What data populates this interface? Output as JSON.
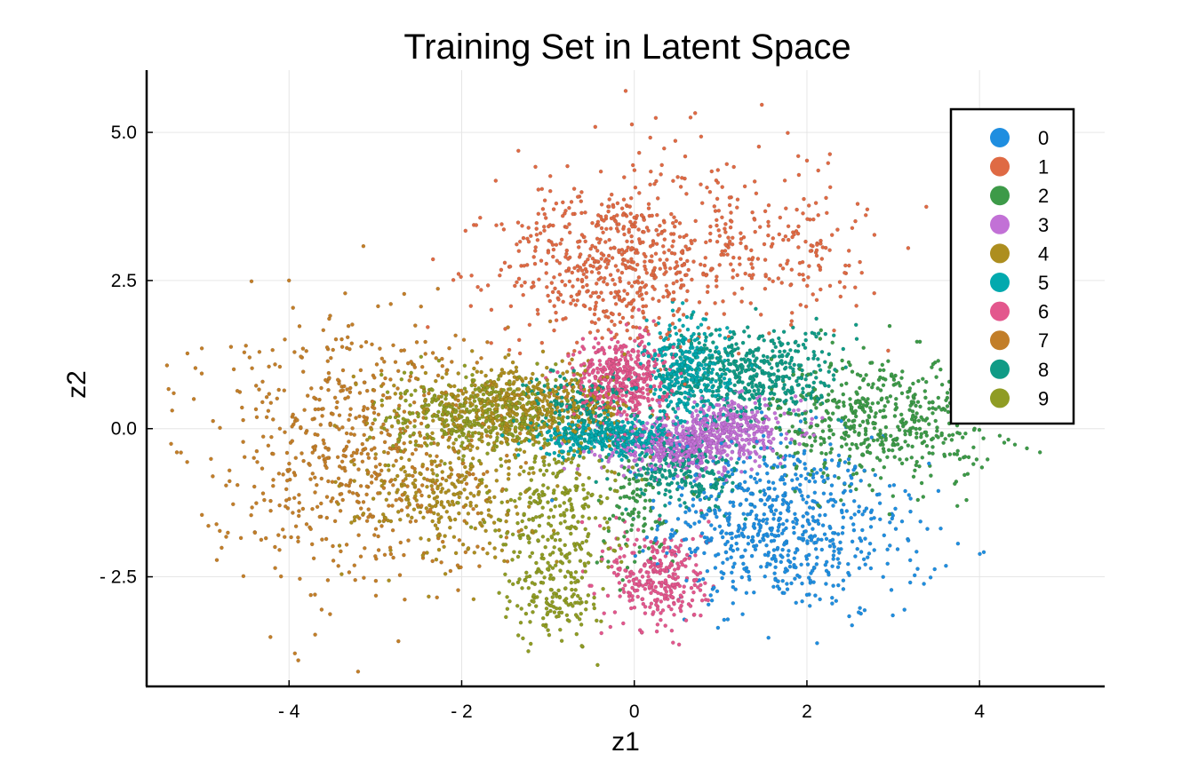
{
  "chart_data": {
    "type": "scatter",
    "title": "Training Set in Latent Space",
    "xlabel": "z1",
    "ylabel": "z2",
    "xlim": [
      -5.65,
      5.45
    ],
    "ylim": [
      -4.35,
      6.05
    ],
    "xticks": [
      -4,
      -2,
      0,
      2,
      4
    ],
    "xtick_labels": [
      "- 4",
      "- 2",
      "0",
      "2",
      "4"
    ],
    "yticks": [
      -2.5,
      0.0,
      2.5,
      5.0
    ],
    "ytick_labels": [
      "- 2.5",
      "0.0",
      "2.5",
      "5.0"
    ],
    "grid": true,
    "legend_position": "top-right",
    "series": [
      {
        "name": "0",
        "color": "#1f8ee0",
        "n": 680,
        "clusters": [
          {
            "cx": 1.55,
            "cy": -1.55,
            "sx": 0.62,
            "sy": 0.72,
            "w": 0.8
          },
          {
            "cx": 2.4,
            "cy": -2.0,
            "sx": 0.55,
            "sy": 0.6,
            "w": 0.2
          }
        ],
        "samples": [
          [
            1.2,
            -1.0
          ],
          [
            1.5,
            -1.8
          ],
          [
            2.0,
            -2.2
          ],
          [
            0.9,
            -2.9
          ],
          [
            2.6,
            -3.1
          ],
          [
            3.2,
            -1.4
          ]
        ]
      },
      {
        "name": "1",
        "color": "#df6a44",
        "n": 820,
        "clusters": [
          {
            "cx": -0.3,
            "cy": 2.7,
            "sx": 0.65,
            "sy": 0.65,
            "w": 0.55
          },
          {
            "cx": 0.5,
            "cy": 3.4,
            "sx": 0.9,
            "sy": 0.8,
            "w": 0.3
          },
          {
            "cx": 1.8,
            "cy": 2.9,
            "sx": 0.55,
            "sy": 0.55,
            "w": 0.15
          }
        ],
        "samples": [
          [
            -1.5,
            2.8
          ],
          [
            -0.2,
            3.6
          ],
          [
            0.8,
            2.6
          ],
          [
            -0.1,
            5.7
          ],
          [
            1.9,
            4.6
          ],
          [
            2.7,
            3.7
          ]
        ]
      },
      {
        "name": "2",
        "color": "#3d9a48",
        "n": 620,
        "clusters": [
          {
            "cx": 2.9,
            "cy": 0.15,
            "sx": 0.65,
            "sy": 0.55,
            "w": 0.85
          },
          {
            "cx": 0.0,
            "cy": -1.4,
            "sx": 0.25,
            "sy": 0.5,
            "w": 0.15
          }
        ],
        "samples": [
          [
            2.5,
            0.5
          ],
          [
            3.2,
            0.0
          ],
          [
            3.8,
            1.6
          ],
          [
            4.7,
            -0.4
          ],
          [
            2.2,
            -0.6
          ]
        ]
      },
      {
        "name": "3",
        "color": "#c271d6",
        "n": 720,
        "clusters": [
          {
            "cx": 0.55,
            "cy": -0.3,
            "sx": 0.45,
            "sy": 0.22,
            "w": 0.6
          },
          {
            "cx": 1.1,
            "cy": 0.05,
            "sx": 0.4,
            "sy": 0.22,
            "w": 0.4
          }
        ],
        "samples": [
          [
            0.2,
            -0.4
          ],
          [
            0.8,
            -0.2
          ],
          [
            1.3,
            0.1
          ],
          [
            0.5,
            -0.8
          ]
        ]
      },
      {
        "name": "4",
        "color": "#ad8e1f",
        "n": 780,
        "clusters": [
          {
            "cx": -1.3,
            "cy": 0.35,
            "sx": 0.65,
            "sy": 0.32,
            "w": 0.65
          },
          {
            "cx": -2.2,
            "cy": -1.1,
            "sx": 0.5,
            "sy": 0.55,
            "w": 0.35
          }
        ],
        "samples": [
          [
            -1.6,
            0.4
          ],
          [
            -0.9,
            0.5
          ],
          [
            -2.3,
            -1.3
          ],
          [
            -2.0,
            -0.9
          ]
        ]
      },
      {
        "name": "5",
        "color": "#02a9ae",
        "n": 700,
        "clusters": [
          {
            "cx": 0.6,
            "cy": 0.9,
            "sx": 0.25,
            "sy": 0.45,
            "w": 0.5
          },
          {
            "cx": -0.3,
            "cy": -0.15,
            "sx": 0.4,
            "sy": 0.15,
            "w": 0.5
          }
        ],
        "samples": [
          [
            0.6,
            1.3
          ],
          [
            0.4,
            0.4
          ],
          [
            -0.4,
            -0.1
          ],
          [
            0.1,
            0.1
          ]
        ]
      },
      {
        "name": "6",
        "color": "#e3578d",
        "n": 720,
        "clusters": [
          {
            "cx": -0.15,
            "cy": 0.85,
            "sx": 0.28,
            "sy": 0.35,
            "w": 0.6
          },
          {
            "cx": 0.3,
            "cy": -2.55,
            "sx": 0.28,
            "sy": 0.45,
            "w": 0.4
          }
        ],
        "samples": [
          [
            -0.2,
            0.9
          ],
          [
            0.1,
            0.6
          ],
          [
            0.3,
            -2.4
          ],
          [
            0.4,
            -3.0
          ]
        ]
      },
      {
        "name": "7",
        "color": "#c27e29",
        "n": 620,
        "clusters": [
          {
            "cx": -3.3,
            "cy": -0.3,
            "sx": 0.85,
            "sy": 1.15,
            "w": 1.0
          }
        ],
        "samples": [
          [
            -4.0,
            2.5
          ],
          [
            -4.5,
            1.4
          ],
          [
            -3.0,
            -0.5
          ],
          [
            -3.7,
            -2.8
          ],
          [
            -3.2,
            -4.1
          ],
          [
            -5.3,
            -0.4
          ]
        ]
      },
      {
        "name": "8",
        "color": "#109b86",
        "n": 820,
        "clusters": [
          {
            "cx": 1.4,
            "cy": 0.9,
            "sx": 0.5,
            "sy": 0.4,
            "w": 0.55
          },
          {
            "cx": 0.6,
            "cy": -0.8,
            "sx": 0.35,
            "sy": 0.3,
            "w": 0.25
          },
          {
            "cx": -0.6,
            "cy": 0.4,
            "sx": 0.3,
            "sy": 0.3,
            "w": 0.2
          }
        ],
        "samples": [
          [
            1.0,
            0.8
          ],
          [
            1.8,
            1.1
          ],
          [
            0.8,
            -0.8
          ],
          [
            -0.5,
            0.5
          ]
        ]
      },
      {
        "name": "9",
        "color": "#8f9c24",
        "n": 820,
        "clusters": [
          {
            "cx": -1.8,
            "cy": 0.2,
            "sx": 0.55,
            "sy": 0.32,
            "w": 0.5
          },
          {
            "cx": -0.9,
            "cy": -1.3,
            "sx": 0.35,
            "sy": 0.75,
            "w": 0.35
          },
          {
            "cx": -0.9,
            "cy": -2.9,
            "sx": 0.25,
            "sy": 0.35,
            "w": 0.15
          }
        ],
        "samples": [
          [
            -2.0,
            0.2
          ],
          [
            -1.0,
            -1.0
          ],
          [
            -0.8,
            -2.5
          ],
          [
            -1.0,
            -3.4
          ]
        ]
      }
    ]
  }
}
